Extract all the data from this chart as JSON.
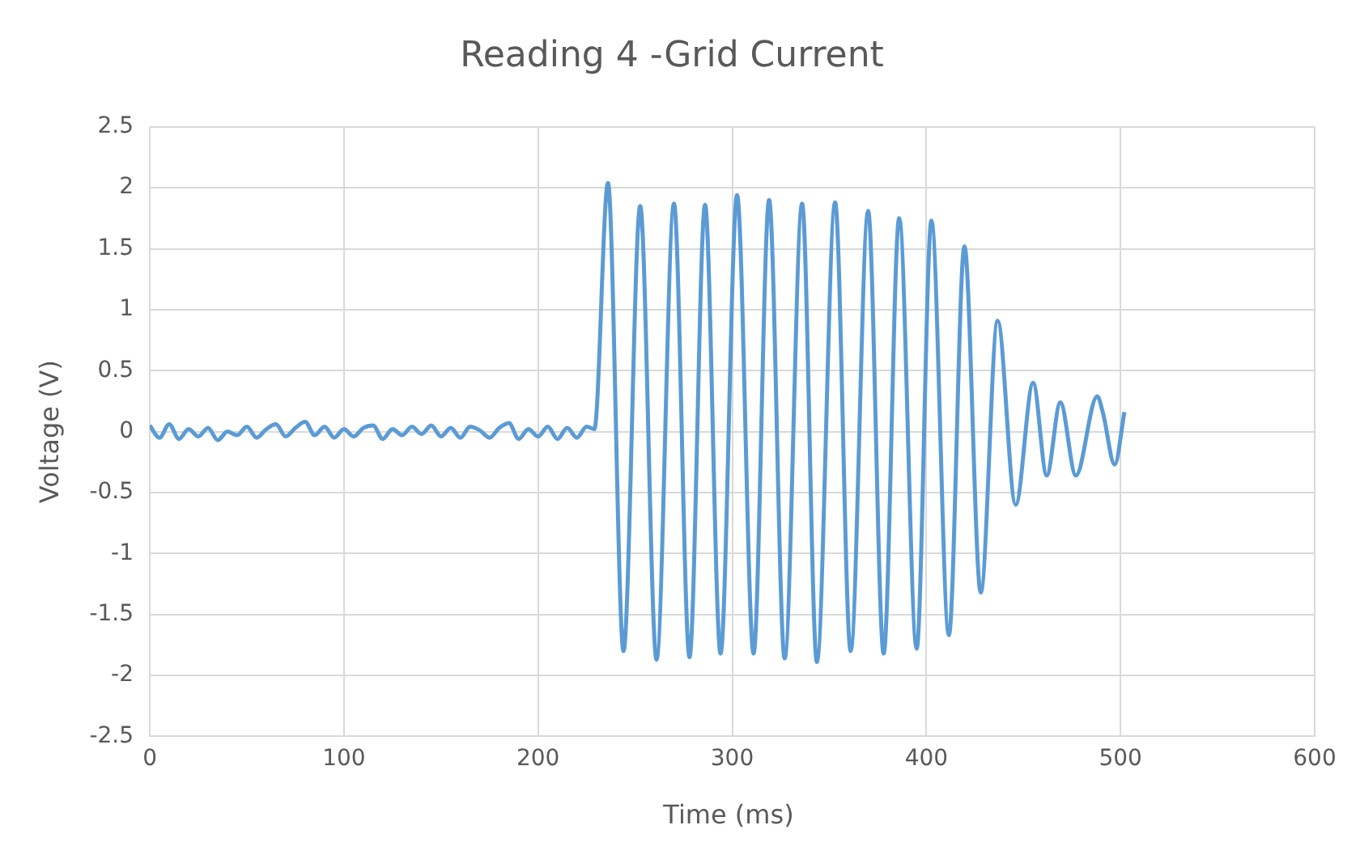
{
  "chart_data": {
    "type": "line",
    "title": "Reading 4 -Grid Current",
    "xlabel": "Time (ms)",
    "ylabel": "Voltage (V)",
    "xlim": [
      0,
      600
    ],
    "xticks": [
      0,
      100,
      200,
      300,
      400,
      500,
      600
    ],
    "ylim": [
      -2.5,
      2.5
    ],
    "yticks": [
      2.5,
      2,
      1.5,
      1,
      0.5,
      0,
      -0.5,
      -1,
      -1.5,
      -2,
      -2.5
    ],
    "grid": true,
    "legend": false,
    "marker": "none",
    "line_style": "solid",
    "series": [
      {
        "color": "#5b9bd5",
        "x": [
          0,
          5,
          10,
          15,
          20,
          25,
          30,
          35,
          40,
          45,
          50,
          55,
          60,
          65,
          70,
          75,
          80,
          85,
          90,
          95,
          100,
          105,
          110,
          115,
          120,
          125,
          130,
          135,
          140,
          145,
          150,
          155,
          160,
          165,
          170,
          175,
          180,
          185,
          190,
          195,
          200,
          205,
          210,
          215,
          220,
          225,
          229,
          236,
          244,
          252.6,
          261,
          270,
          278,
          286,
          294,
          302.5,
          311,
          319,
          327,
          336,
          343.6,
          353,
          361,
          370,
          378,
          386,
          395,
          402.6,
          411.6,
          419.6,
          428,
          436.7,
          446,
          455,
          462,
          469,
          477,
          488,
          491,
          497,
          502
        ],
        "values": [
          0.05,
          -0.05,
          0.06,
          -0.06,
          0.02,
          -0.04,
          0.03,
          -0.07,
          0,
          -0.03,
          0.04,
          -0.05,
          0.02,
          0.06,
          -0.04,
          0.03,
          0.08,
          -0.03,
          0.04,
          -0.05,
          0.02,
          -0.04,
          0.03,
          0.05,
          -0.06,
          0.02,
          -0.03,
          0.04,
          -0.02,
          0.05,
          -0.04,
          0.03,
          -0.05,
          0.04,
          0.01,
          -0.05,
          0.03,
          0.07,
          -0.06,
          0.02,
          -0.04,
          0.04,
          -0.06,
          0.03,
          -0.05,
          0.04,
          0.02,
          2.04,
          -1.8,
          1.85,
          -1.87,
          1.87,
          -1.85,
          1.86,
          -1.82,
          1.94,
          -1.82,
          1.9,
          -1.86,
          1.87,
          -1.89,
          1.88,
          -1.8,
          1.81,
          -1.82,
          1.75,
          -1.78,
          1.73,
          -1.67,
          1.52,
          -1.32,
          0.91,
          -0.6,
          0.4,
          -0.36,
          0.24,
          -0.36,
          0.29,
          0.15,
          -0.27,
          0.16
        ]
      }
    ]
  }
}
